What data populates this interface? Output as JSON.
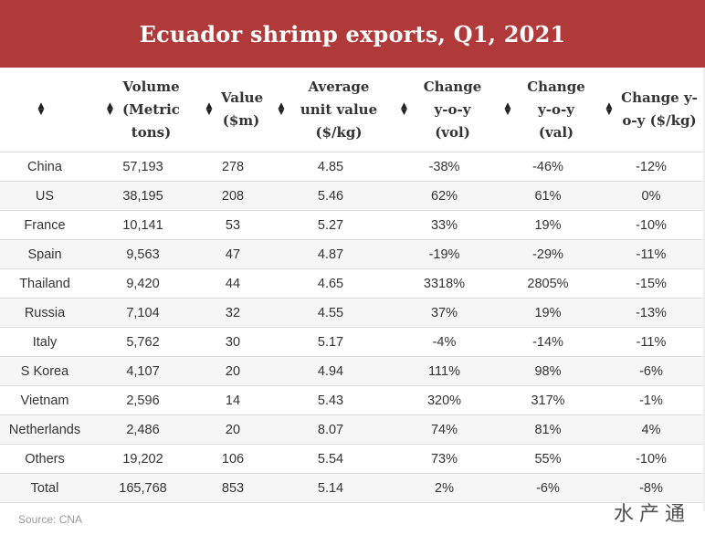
{
  "chart_data": {
    "type": "table",
    "title": "Ecuador shrimp exports, Q1, 2021",
    "columns": [
      {
        "key": "country",
        "label": ""
      },
      {
        "key": "volume",
        "label": "Volume (Metric tons)"
      },
      {
        "key": "value",
        "label": "Value ($m)"
      },
      {
        "key": "avg",
        "label": "Average unit value ($/kg)"
      },
      {
        "key": "chg_vol",
        "label": "Change y-o-y (vol)"
      },
      {
        "key": "chg_val",
        "label": "Change y-o-y (val)"
      },
      {
        "key": "chg_kg",
        "label": "Change y-o-y ($/kg)"
      }
    ],
    "rows": [
      {
        "country": "China",
        "volume": "57,193",
        "value": "278",
        "avg": "4.85",
        "chg_vol": "-38%",
        "chg_val": "-46%",
        "chg_kg": "-12%"
      },
      {
        "country": "US",
        "volume": "38,195",
        "value": "208",
        "avg": "5.46",
        "chg_vol": "62%",
        "chg_val": "61%",
        "chg_kg": "0%"
      },
      {
        "country": "France",
        "volume": "10,141",
        "value": "53",
        "avg": "5.27",
        "chg_vol": "33%",
        "chg_val": "19%",
        "chg_kg": "-10%"
      },
      {
        "country": "Spain",
        "volume": "9,563",
        "value": "47",
        "avg": "4.87",
        "chg_vol": "-19%",
        "chg_val": "-29%",
        "chg_kg": "-11%"
      },
      {
        "country": "Thailand",
        "volume": "9,420",
        "value": "44",
        "avg": "4.65",
        "chg_vol": "3318%",
        "chg_val": "2805%",
        "chg_kg": "-15%"
      },
      {
        "country": "Russia",
        "volume": "7,104",
        "value": "32",
        "avg": "4.55",
        "chg_vol": "37%",
        "chg_val": "19%",
        "chg_kg": "-13%"
      },
      {
        "country": "Italy",
        "volume": "5,762",
        "value": "30",
        "avg": "5.17",
        "chg_vol": "-4%",
        "chg_val": "-14%",
        "chg_kg": "-11%"
      },
      {
        "country": "S Korea",
        "volume": "4,107",
        "value": "20",
        "avg": "4.94",
        "chg_vol": "111%",
        "chg_val": "98%",
        "chg_kg": "-6%"
      },
      {
        "country": "Vietnam",
        "volume": "2,596",
        "value": "14",
        "avg": "5.43",
        "chg_vol": "320%",
        "chg_val": "317%",
        "chg_kg": "-1%"
      },
      {
        "country": "Netherlands",
        "volume": "2,486",
        "value": "20",
        "avg": "8.07",
        "chg_vol": "74%",
        "chg_val": "81%",
        "chg_kg": "4%"
      },
      {
        "country": "Others",
        "volume": "19,202",
        "value": "106",
        "avg": "5.54",
        "chg_vol": "73%",
        "chg_val": "55%",
        "chg_kg": "-10%"
      },
      {
        "country": "Total",
        "volume": "165,768",
        "value": "853",
        "avg": "5.14",
        "chg_vol": "2%",
        "chg_val": "-6%",
        "chg_kg": "-8%"
      }
    ],
    "source": "Source: CNA",
    "header_color": "#b03a3a",
    "stripe_color": "#f6f6f6"
  },
  "watermark": {
    "text": "水产通"
  },
  "icons": {
    "sort": "sort-up-down-icon"
  }
}
